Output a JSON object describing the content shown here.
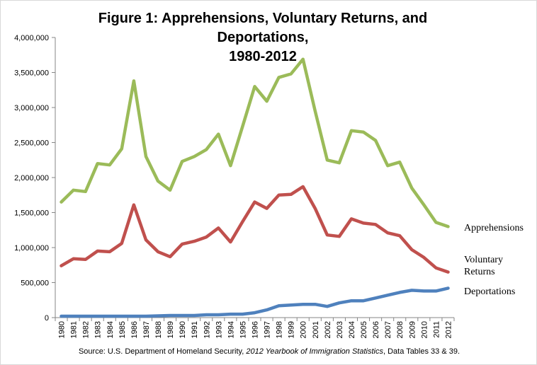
{
  "chart_data": {
    "type": "line",
    "title_lines": [
      "Figure 1: Apprehensions, Voluntary Returns, and",
      "Deportations,",
      "1980-2012"
    ],
    "xlabel": "",
    "ylabel": "",
    "ylim": [
      0,
      4000000
    ],
    "y_ticks": [
      "0",
      "500,000",
      "1,000,000",
      "1,500,000",
      "2,000,000",
      "2,500,000",
      "3,000,000",
      "3,500,000",
      "4,000,000"
    ],
    "x": [
      "1980",
      "1981",
      "1982",
      "1983",
      "1984",
      "1985",
      "1986",
      "1987",
      "1988",
      "1989",
      "1990",
      "1991",
      "1992",
      "1993",
      "1994",
      "1995",
      "1996",
      "1997",
      "1998",
      "1999",
      "2000",
      "2001",
      "2002",
      "2003",
      "2004",
      "2005",
      "2006",
      "2007",
      "2008",
      "2009",
      "2010",
      "2011",
      "2012"
    ],
    "grid": false,
    "legend_placement": "right (inline labels)",
    "series": [
      {
        "name": "Apprehensions",
        "color": "#9bbb59",
        "values": [
          1650000,
          1820000,
          1800000,
          2200000,
          2180000,
          2410000,
          3380000,
          2300000,
          1950000,
          1820000,
          2230000,
          2300000,
          2400000,
          2620000,
          2170000,
          2730000,
          3300000,
          3090000,
          3430000,
          3480000,
          3690000,
          2950000,
          2250000,
          2210000,
          2670000,
          2650000,
          2530000,
          2170000,
          2220000,
          1850000,
          1610000,
          1360000,
          1300000
        ]
      },
      {
        "name": "Voluntary Returns",
        "color": "#c0504d",
        "values": [
          740000,
          840000,
          830000,
          950000,
          940000,
          1060000,
          1610000,
          1110000,
          940000,
          870000,
          1050000,
          1090000,
          1150000,
          1280000,
          1080000,
          1370000,
          1650000,
          1560000,
          1750000,
          1760000,
          1870000,
          1560000,
          1180000,
          1160000,
          1410000,
          1350000,
          1330000,
          1210000,
          1170000,
          970000,
          860000,
          710000,
          650000
        ]
      },
      {
        "name": "Deportations",
        "color": "#4f81bd",
        "values": [
          20000,
          20000,
          20000,
          20000,
          20000,
          20000,
          20000,
          20000,
          25000,
          30000,
          30000,
          30000,
          40000,
          40000,
          50000,
          50000,
          70000,
          110000,
          170000,
          180000,
          190000,
          190000,
          160000,
          210000,
          240000,
          240000,
          280000,
          320000,
          360000,
          390000,
          380000,
          380000,
          420000
        ]
      }
    ],
    "legend_labels": {
      "apprehensions": "Apprehensions",
      "voluntary_line1": "Voluntary",
      "voluntary_line2": "Returns",
      "deportations": "Deportations"
    }
  },
  "source": {
    "prefix": "Source: U.S. Department of Homeland Security, ",
    "italic": "2012 Yearbook of Immigration Statistics",
    "suffix": ",  Data Tables 33 & 39."
  }
}
